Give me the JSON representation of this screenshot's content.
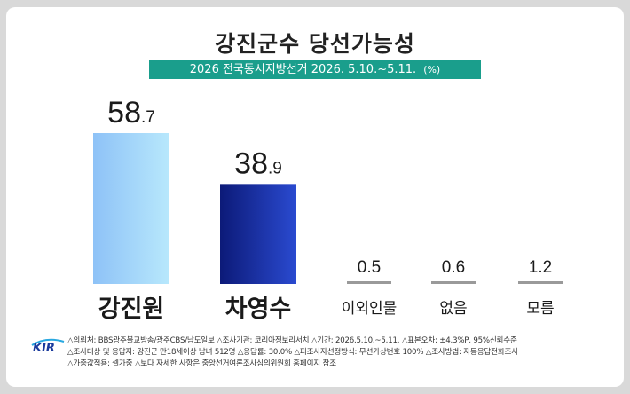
{
  "title": "강진군수 당선가능성",
  "banner": {
    "text": "2026 전국동시지방선거 2026. 5.10.~5.11.",
    "unit": "(%)"
  },
  "chart_data": {
    "type": "bar",
    "title": "강진군수 당선가능성",
    "categories": [
      "강진원",
      "차영수",
      "이외인물",
      "없음",
      "모름"
    ],
    "values": [
      58.7,
      38.9,
      0.5,
      0.6,
      1.2
    ],
    "value_labels": [
      {
        "int": "58",
        "dec": ".7"
      },
      {
        "int": "38",
        "dec": ".9"
      },
      {
        "int": "0.5",
        "dec": ""
      },
      {
        "int": "0.6",
        "dec": ""
      },
      {
        "int": "1.2",
        "dec": ""
      }
    ],
    "ylim": [
      0,
      60
    ],
    "colors": [
      "#a8d4fb",
      "#1a2a9c",
      "#9a9a9a",
      "#9a9a9a",
      "#9a9a9a"
    ],
    "grid": false,
    "legend": "none"
  },
  "footer": {
    "logo": "KIR",
    "lines": [
      "△의뢰처: BBS광주불교방송/광주CBS/남도일보  △조사기관: 코리아정보리서치  △기간: 2026.5.10.~5.11.  △표본오차: ±4.3%P, 95%신뢰수준",
      "△조사대상 및 응답자: 강진군 만18세이상 남녀 512명  △응답률: 30.0%  △피조사자선정방식: 무선가상번호 100%  △조사방법: 자동응답전화조사",
      "△가중값적용: 셀가중  △보다 자세한 사항은 중앙선거여론조사심의위원회 홈페이지 참조"
    ]
  }
}
